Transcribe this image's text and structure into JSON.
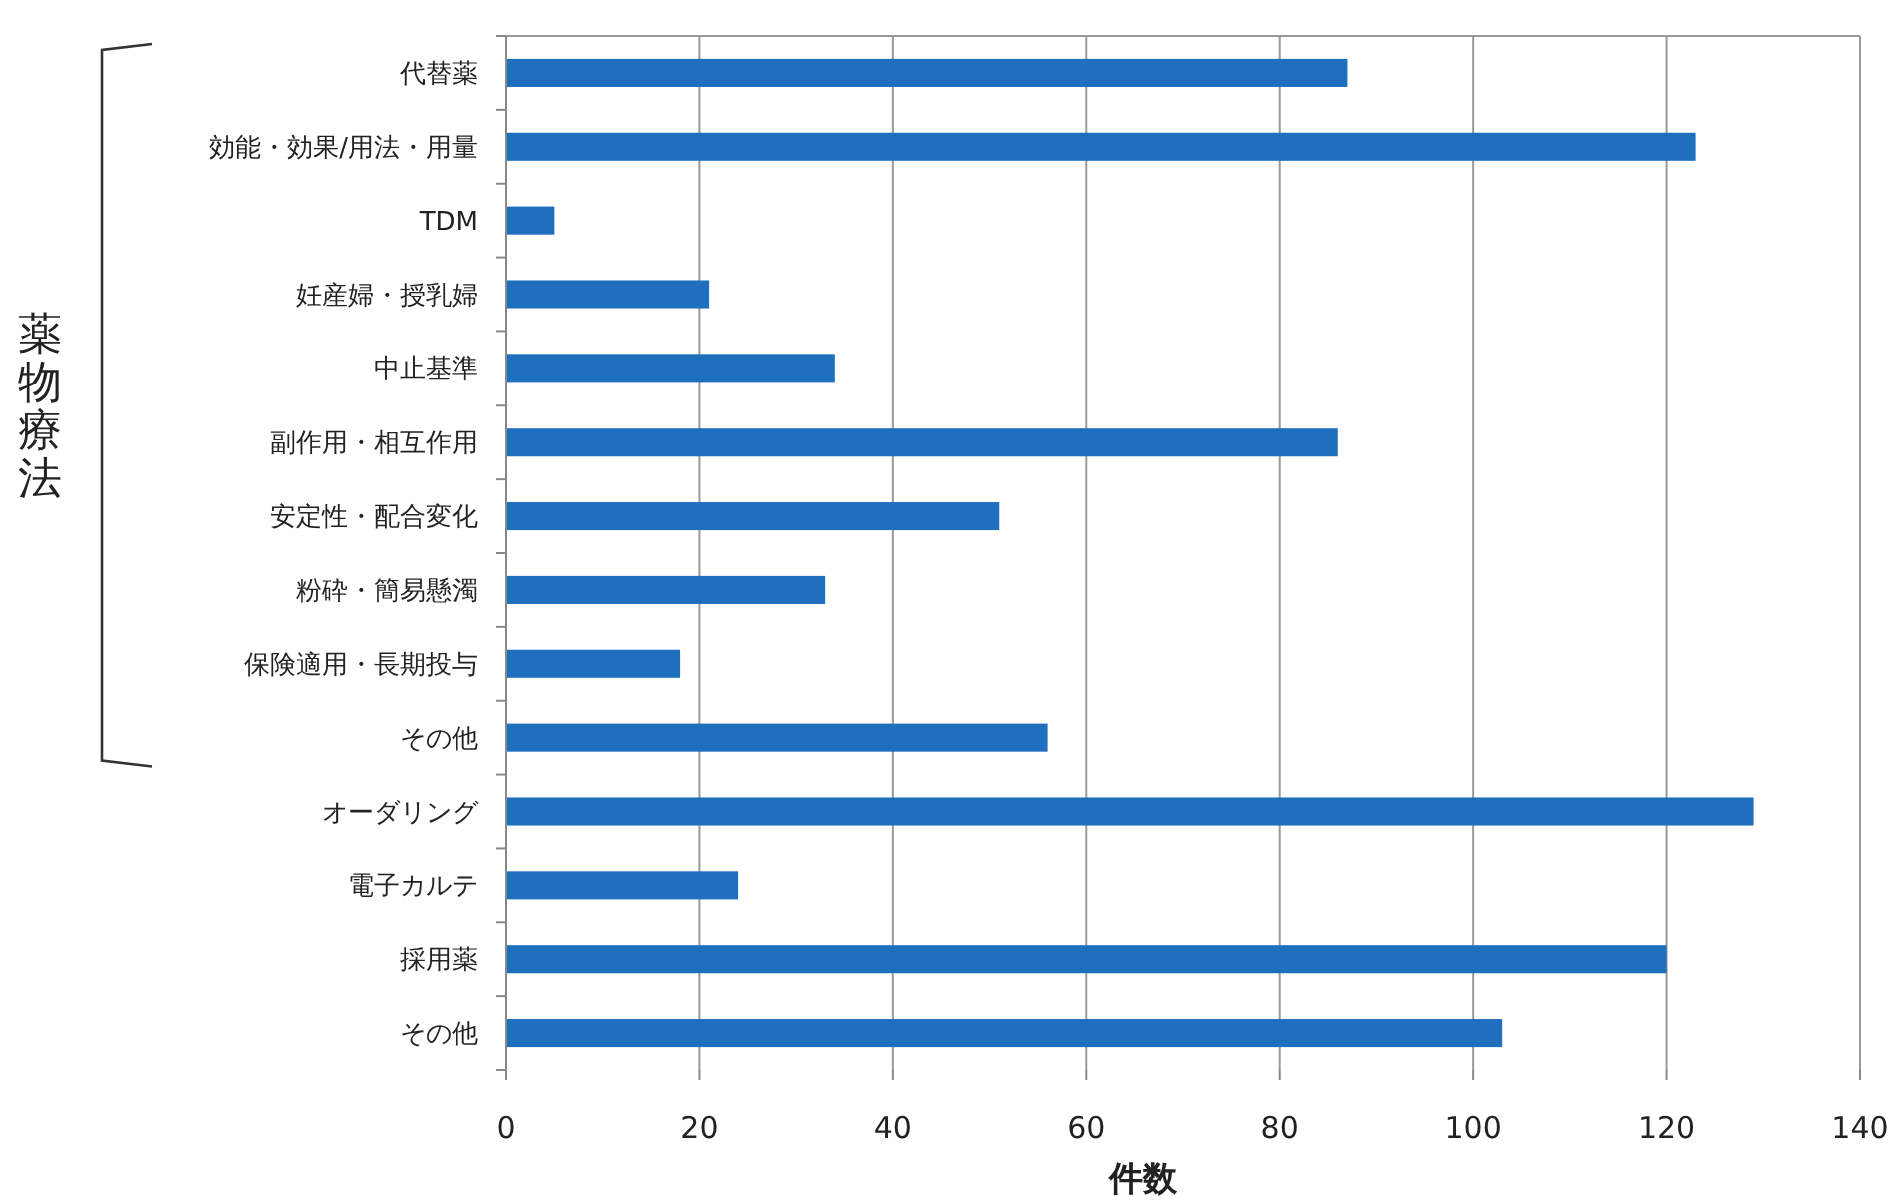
{
  "chart_data": {
    "type": "bar",
    "orientation": "horizontal",
    "xlabel": "件数",
    "categories": [
      "代替薬",
      "効能・効果/用法・用量",
      "TDM",
      "妊産婦・授乳婦",
      "中止基準",
      "副作用・相互作用",
      "安定性・配合変化",
      "粉砕・簡易懸濁",
      "保険適用・長期投与",
      "その他",
      "オーダリング",
      "電子カルテ",
      "採用薬",
      "その他"
    ],
    "values": [
      87,
      123,
      5,
      21,
      34,
      86,
      51,
      33,
      18,
      56,
      129,
      24,
      120,
      103
    ],
    "color": "#1f6fbf",
    "xlim": [
      0,
      140
    ],
    "xticks": [
      0,
      20,
      40,
      60,
      80,
      100,
      120,
      140
    ],
    "grid": "x",
    "annotations": [
      "薬物療法"
    ]
  }
}
